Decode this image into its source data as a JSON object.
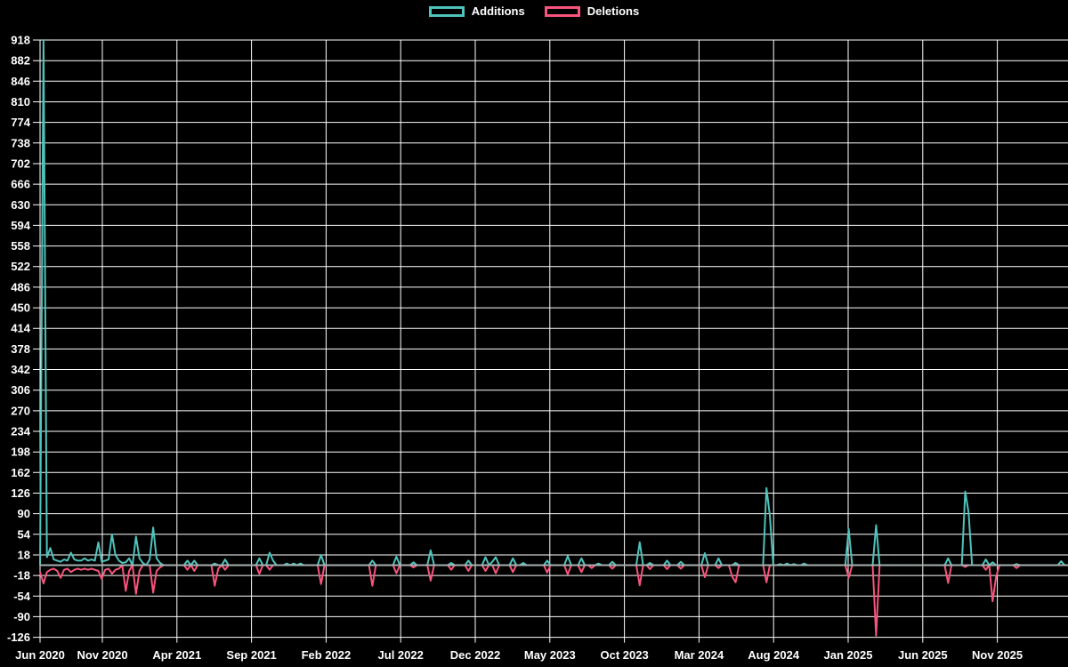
{
  "legend": {
    "items": [
      {
        "label": "Additions",
        "color": "#4ec3bb"
      },
      {
        "label": "Deletions",
        "color": "#f8547c"
      }
    ]
  },
  "chart_data": {
    "type": "line",
    "title": "",
    "background": "#000000",
    "grid_color": "#ffffff",
    "zero_line_color": "#a7b0b1",
    "legend_position": "top",
    "grid": "on",
    "x_ticks": [
      "Jun 2020",
      "Nov 2020",
      "Apr 2021",
      "Sep 2021",
      "Feb 2022",
      "Jul 2022",
      "Dec 2022",
      "May 2023",
      "Oct 2023",
      "Mar 2024",
      "Aug 2024",
      "Jan 2025",
      "Jun 2025",
      "Nov 2025"
    ],
    "y_ticks": [
      "918",
      "882",
      "846",
      "810",
      "774",
      "738",
      "702",
      "666",
      "630",
      "594",
      "558",
      "522",
      "486",
      "450",
      "414",
      "378",
      "342",
      "306",
      "270",
      "234",
      "198",
      "162",
      "126",
      "90",
      "54",
      "18",
      "-18",
      "-54",
      "-90",
      "-126"
    ],
    "ylim": [
      -126,
      918
    ],
    "y_tick_step": 36,
    "x_unit": "week",
    "n_weeks": 300,
    "series": [
      {
        "name": "Additions",
        "color": "#4ec3bb",
        "default_value": 0,
        "sparse_points_by_week": {
          "1": 918,
          "2": 14,
          "3": 30,
          "4": 10,
          "5": 8,
          "6": 6,
          "7": 10,
          "8": 8,
          "9": 22,
          "10": 10,
          "11": 8,
          "12": 8,
          "13": 12,
          "14": 8,
          "15": 10,
          "16": 8,
          "17": 40,
          "18": 6,
          "19": 8,
          "20": 10,
          "21": 54,
          "22": 18,
          "23": 8,
          "24": 4,
          "25": 5,
          "26": 12,
          "28": 50,
          "29": 12,
          "30": 4,
          "32": 10,
          "33": 66,
          "34": 12,
          "35": 4,
          "43": 8,
          "45": 8,
          "51": 3,
          "54": 10,
          "64": 12,
          "67": 22,
          "68": 8,
          "72": 3,
          "74": 3,
          "76": 3,
          "82": 18,
          "97": 8,
          "104": 15,
          "109": 5,
          "114": 26,
          "120": 4,
          "125": 8,
          "130": 14,
          "132": 6,
          "133": 14,
          "138": 12,
          "141": 4,
          "148": 8,
          "154": 16,
          "158": 12,
          "163": 3,
          "167": 6,
          "175": 40,
          "178": 4,
          "183": 8,
          "187": 6,
          "194": 21,
          "198": 12,
          "203": 4,
          "212": 135,
          "213": 87,
          "216": 2,
          "218": 3,
          "220": 2,
          "223": 3,
          "236": 63,
          "244": 70,
          "265": 12,
          "270": 129,
          "271": 92,
          "276": 10,
          "278": 5,
          "285": 2,
          "298": 7
        }
      },
      {
        "name": "Deletions",
        "color": "#f8547c",
        "default_value": 0,
        "sparse_points_by_week": {
          "0": -12,
          "1": -32,
          "2": -12,
          "3": -8,
          "4": -6,
          "5": -10,
          "6": -22,
          "7": -8,
          "8": -6,
          "9": -12,
          "10": -8,
          "11": -6,
          "12": -8,
          "13": -6,
          "14": -8,
          "15": -6,
          "16": -8,
          "17": -10,
          "18": -24,
          "19": -8,
          "20": -6,
          "21": -15,
          "22": -8,
          "23": -6,
          "25": -45,
          "26": -10,
          "28": -50,
          "29": -10,
          "33": -48,
          "34": -10,
          "35": -4,
          "43": -8,
          "45": -10,
          "51": -36,
          "52": -6,
          "54": -8,
          "64": -15,
          "67": -8,
          "82": -33,
          "97": -36,
          "104": -14,
          "109": -4,
          "114": -27,
          "120": -8,
          "125": -10,
          "130": -10,
          "133": -14,
          "138": -12,
          "148": -13,
          "154": -16,
          "158": -12,
          "161": -5,
          "167": -6,
          "175": -35,
          "178": -7,
          "183": -7,
          "187": -6,
          "194": -21,
          "198": -5,
          "202": -20,
          "203": -30,
          "212": -30,
          "236": -22,
          "244": -123,
          "265": -31,
          "270": -3,
          "276": -8,
          "278": -63,
          "279": -20,
          "285": -5
        }
      }
    ]
  }
}
